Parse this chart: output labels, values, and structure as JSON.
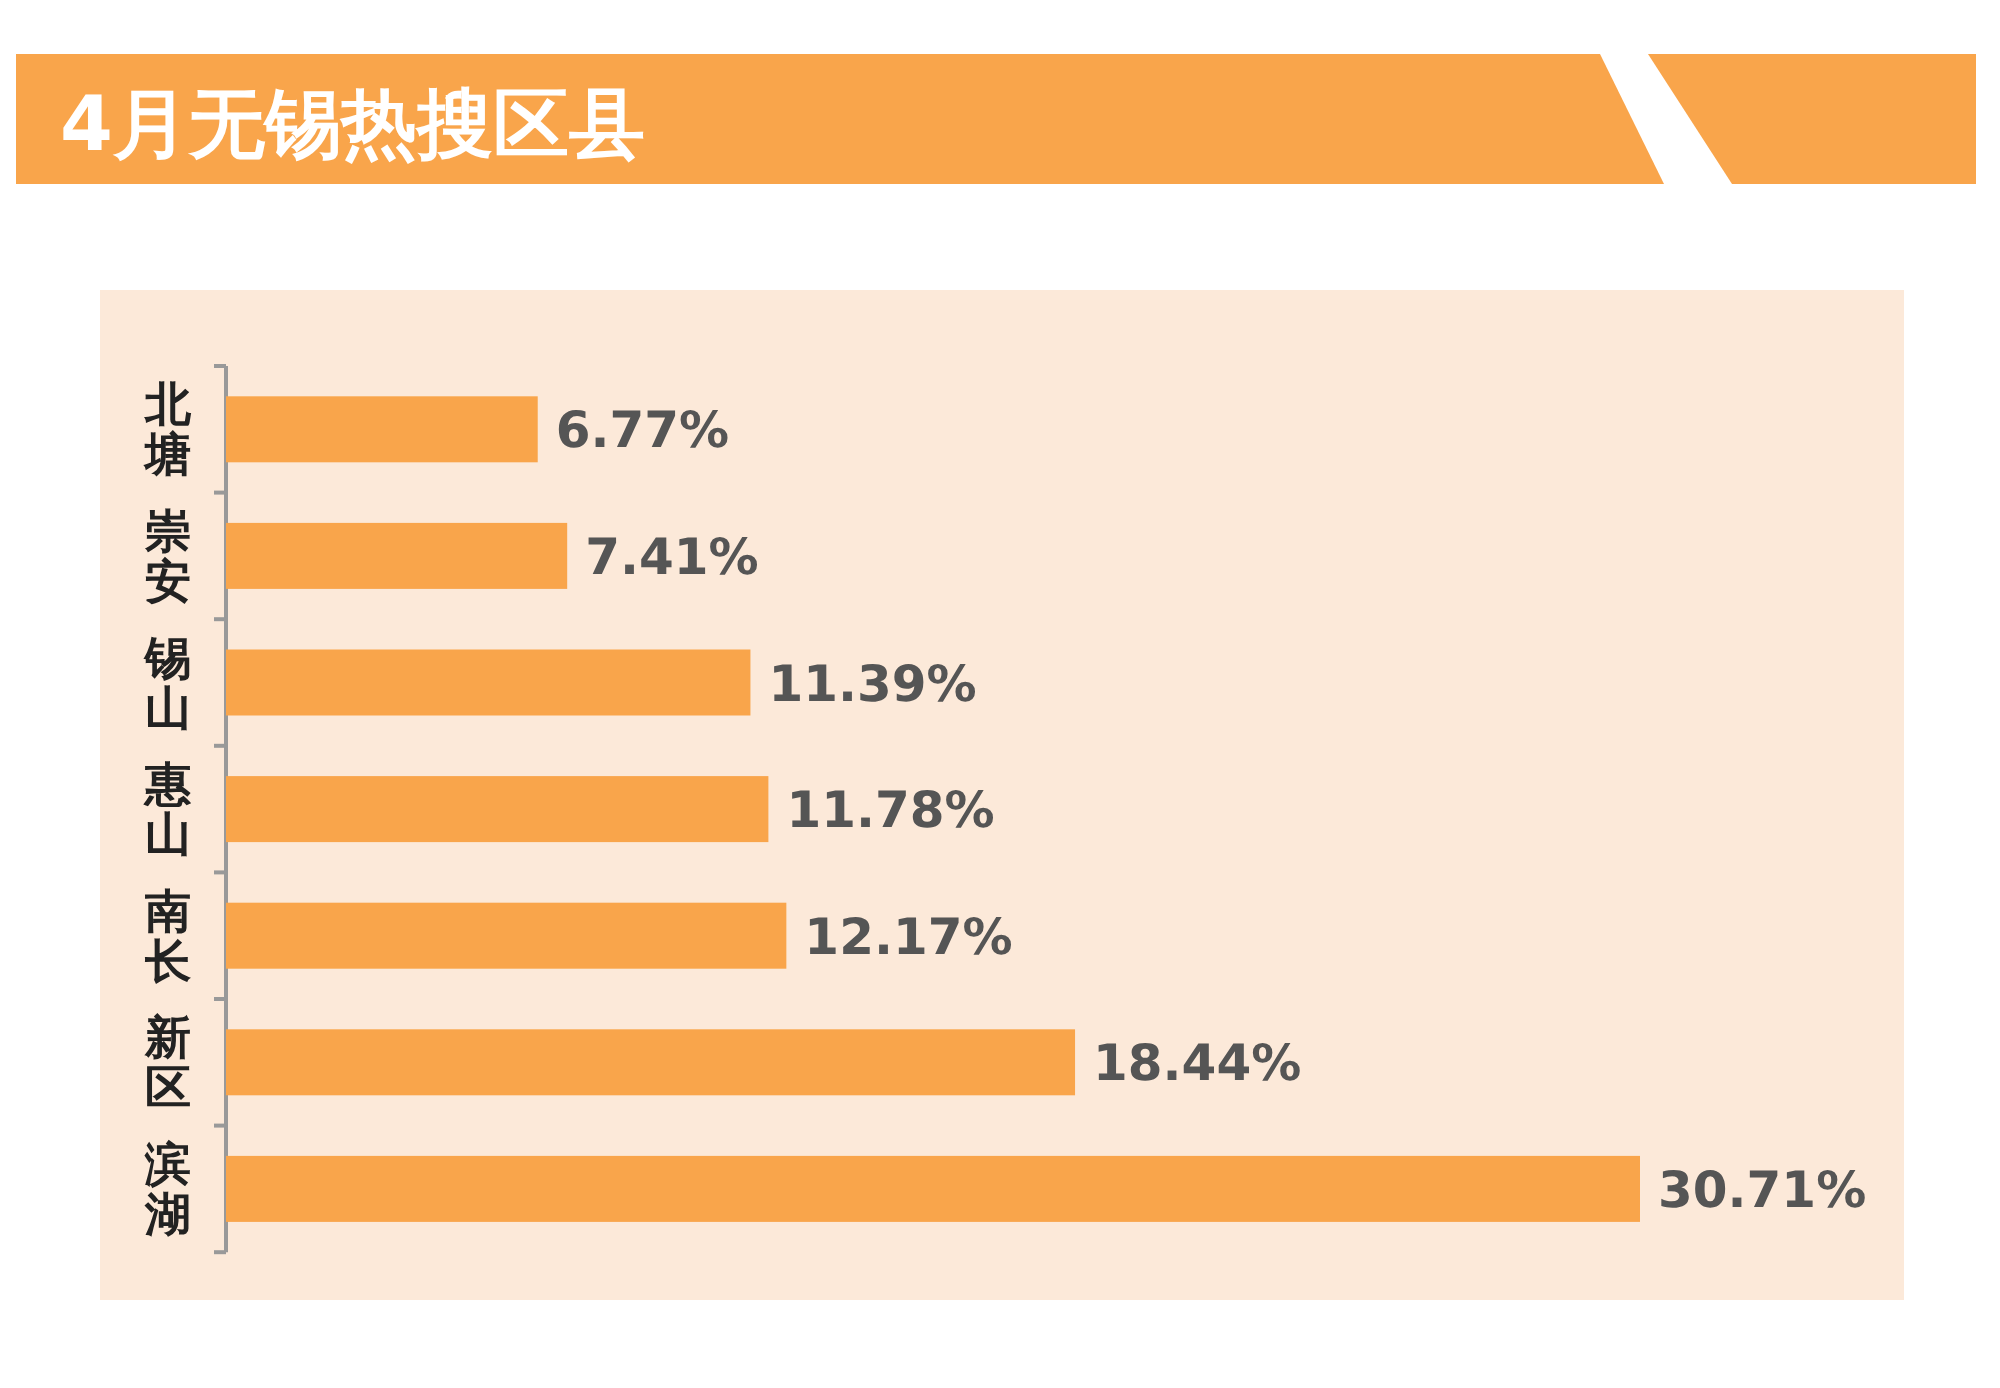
{
  "chart_data": {
    "type": "bar",
    "title": "4月无锡热搜区县",
    "orientation": "horizontal",
    "data_labels": true,
    "color": "#f9a54b",
    "categories": [
      "北塘",
      "崇安",
      "锡山",
      "惠山",
      "南长",
      "新区",
      "滨湖"
    ],
    "values": [
      6.77,
      7.41,
      11.39,
      11.78,
      12.17,
      18.44,
      30.71
    ],
    "value_labels": [
      "6.77%",
      "7.41%",
      "11.39%",
      "11.78%",
      "12.17%",
      "18.44%",
      "30.71%"
    ]
  }
}
